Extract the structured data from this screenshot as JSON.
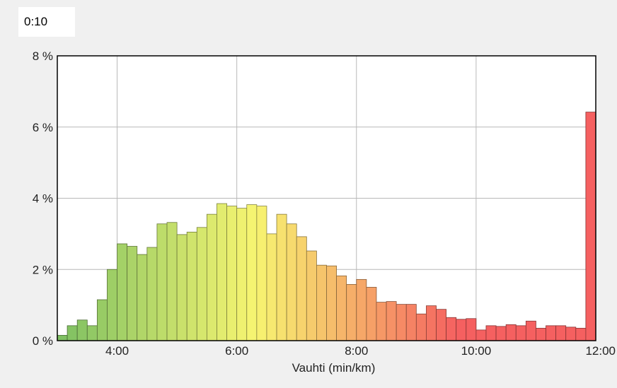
{
  "window": {
    "time_value": "0:10"
  },
  "chart_data": {
    "type": "bar",
    "xlabel": "Vauhti (min/km)",
    "ylabel": "",
    "x_tick_labels": [
      "4:00",
      "6:00",
      "8:00",
      "10:00",
      "12:00"
    ],
    "x_tick_values": [
      4,
      6,
      8,
      10,
      12
    ],
    "y_tick_labels": [
      "0 %",
      "2 %",
      "4 %",
      "6 %",
      "8 %"
    ],
    "y_tick_values": [
      0,
      2,
      4,
      6,
      8
    ],
    "xlim": [
      3.0,
      12.0
    ],
    "ylim": [
      0,
      8
    ],
    "bin_width_min": 0.1667,
    "grid": true,
    "colors": {
      "fast": "#7cbf62",
      "mid": "#f7f571",
      "slow": "#f56060"
    },
    "values": [
      0.15,
      0.42,
      0.58,
      0.42,
      1.15,
      2.0,
      2.72,
      2.65,
      2.42,
      2.62,
      3.28,
      3.32,
      2.98,
      3.05,
      3.18,
      3.55,
      3.85,
      3.78,
      3.72,
      3.82,
      3.78,
      3.0,
      3.55,
      3.28,
      2.92,
      2.52,
      2.12,
      2.1,
      1.82,
      1.58,
      1.72,
      1.5,
      1.08,
      1.1,
      1.02,
      1.02,
      0.75,
      0.98,
      0.88,
      0.65,
      0.6,
      0.62,
      0.3,
      0.42,
      0.4,
      0.45,
      0.42,
      0.55,
      0.35,
      0.42,
      0.42,
      0.38,
      0.35,
      6.42
    ]
  }
}
